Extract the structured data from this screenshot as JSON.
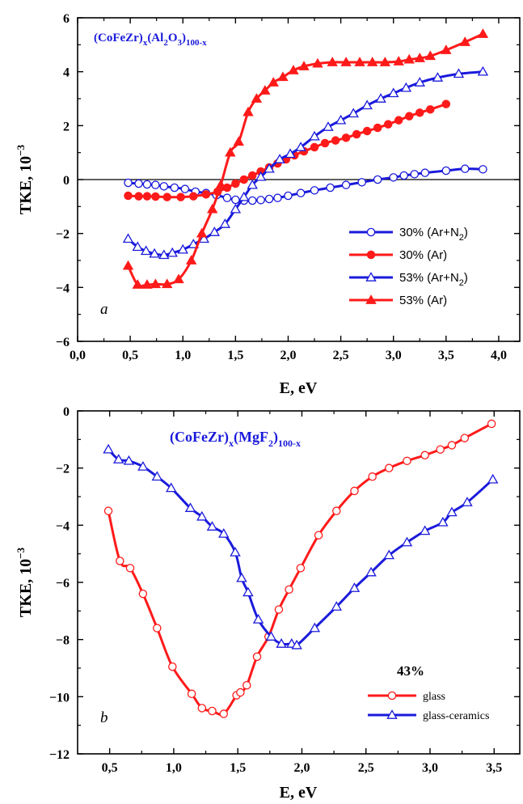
{
  "chart_data": [
    {
      "type": "line",
      "panel_label": "a",
      "formula": {
        "base": "(CoFeZr)",
        "sub1": "x",
        "mid1": "(Al",
        "sub2": "2",
        "mid2": "O",
        "sub3": "3",
        "mid3": ")",
        "sub4": "100-x"
      },
      "xlabel": "E, eV",
      "ylabel": {
        "main": "TKE, 10",
        "exp": "−3"
      },
      "xlim": [
        0.0,
        4.2
      ],
      "ylim": [
        -6,
        6
      ],
      "xticks": [
        0.0,
        0.5,
        1.0,
        1.5,
        2.0,
        2.5,
        3.0,
        3.5,
        4.0
      ],
      "xtick_labels": [
        "0,0",
        "0,5",
        "1,0",
        "1,5",
        "2,0",
        "2,5",
        "3,0",
        "3,5",
        "4,0"
      ],
      "yticks": [
        -6,
        -4,
        -2,
        0,
        2,
        4,
        6
      ],
      "ytick_labels": [
        "−6",
        "−4",
        "−2",
        "0",
        "2",
        "4",
        "6"
      ],
      "zero_line": true,
      "legend_position": "bottom-right",
      "series": [
        {
          "name": "30% (Ar+N",
          "name_sub": "2",
          "name_end": ")",
          "color": "#1a1adc",
          "marker": "circle-open",
          "x": [
            0.48,
            0.58,
            0.66,
            0.74,
            0.82,
            0.92,
            1.02,
            1.12,
            1.22,
            1.32,
            1.42,
            1.5,
            1.58,
            1.66,
            1.74,
            1.82,
            1.9,
            2.0,
            2.12,
            2.25,
            2.4,
            2.55,
            2.7,
            2.85,
            3.0,
            3.1,
            3.2,
            3.3,
            3.5,
            3.68,
            3.85
          ],
          "y": [
            -0.12,
            -0.15,
            -0.18,
            -0.2,
            -0.25,
            -0.3,
            -0.35,
            -0.45,
            -0.5,
            -0.58,
            -0.68,
            -0.75,
            -0.78,
            -0.78,
            -0.76,
            -0.72,
            -0.68,
            -0.6,
            -0.5,
            -0.4,
            -0.3,
            -0.2,
            -0.1,
            0.0,
            0.08,
            0.15,
            0.2,
            0.25,
            0.33,
            0.4,
            0.38
          ]
        },
        {
          "name": "30% (Ar)",
          "name_sub": "",
          "name_end": "",
          "color": "#ff1a1a",
          "marker": "circle-filled",
          "x": [
            0.48,
            0.58,
            0.66,
            0.74,
            0.85,
            0.98,
            1.1,
            1.22,
            1.33,
            1.42,
            1.5,
            1.58,
            1.66,
            1.74,
            1.82,
            1.9,
            1.98,
            2.06,
            2.15,
            2.25,
            2.35,
            2.45,
            2.55,
            2.65,
            2.75,
            2.85,
            2.95,
            3.05,
            3.15,
            3.25,
            3.35,
            3.5
          ],
          "y": [
            -0.6,
            -0.62,
            -0.62,
            -0.63,
            -0.65,
            -0.65,
            -0.62,
            -0.55,
            -0.45,
            -0.3,
            -0.15,
            0.0,
            0.15,
            0.3,
            0.45,
            0.6,
            0.75,
            0.9,
            1.05,
            1.2,
            1.35,
            1.45,
            1.55,
            1.68,
            1.8,
            1.92,
            2.05,
            2.2,
            2.35,
            2.48,
            2.6,
            2.8
          ]
        },
        {
          "name": "53% (Ar+N",
          "name_sub": "2",
          "name_end": ")",
          "color": "#1a1adc",
          "marker": "triangle-open",
          "x": [
            0.48,
            0.57,
            0.65,
            0.73,
            0.82,
            0.9,
            1.0,
            1.1,
            1.2,
            1.3,
            1.4,
            1.5,
            1.58,
            1.66,
            1.74,
            1.82,
            1.92,
            2.02,
            2.12,
            2.25,
            2.38,
            2.5,
            2.62,
            2.75,
            2.88,
            3.0,
            3.12,
            3.25,
            3.42,
            3.62,
            3.85
          ],
          "y": [
            -2.2,
            -2.5,
            -2.65,
            -2.75,
            -2.8,
            -2.72,
            -2.6,
            -2.4,
            -2.2,
            -1.95,
            -1.65,
            -1.1,
            -0.65,
            -0.2,
            0.1,
            0.4,
            0.75,
            0.95,
            1.2,
            1.6,
            1.95,
            2.2,
            2.45,
            2.75,
            3.0,
            3.2,
            3.4,
            3.6,
            3.78,
            3.92,
            4.0
          ]
        },
        {
          "name": "53% (Ar)",
          "name_sub": "",
          "name_end": "",
          "color": "#ff1a1a",
          "marker": "triangle-filled",
          "x": [
            0.48,
            0.57,
            0.66,
            0.74,
            0.85,
            0.96,
            1.08,
            1.18,
            1.28,
            1.36,
            1.45,
            1.53,
            1.62,
            1.7,
            1.78,
            1.86,
            1.95,
            2.05,
            2.15,
            2.28,
            2.42,
            2.55,
            2.68,
            2.8,
            2.92,
            3.05,
            3.15,
            3.25,
            3.35,
            3.5,
            3.68,
            3.85
          ],
          "y": [
            -3.2,
            -3.9,
            -3.9,
            -3.88,
            -3.88,
            -3.7,
            -3.0,
            -2.0,
            -1.1,
            -0.2,
            1.0,
            1.4,
            2.5,
            3.0,
            3.3,
            3.6,
            3.8,
            4.05,
            4.2,
            4.3,
            4.35,
            4.35,
            4.35,
            4.35,
            4.35,
            4.38,
            4.45,
            4.5,
            4.58,
            4.8,
            5.1,
            5.4
          ]
        }
      ]
    },
    {
      "type": "line",
      "panel_label": "b",
      "formula": {
        "base": "(CoFeZr)",
        "sub1": "x",
        "mid1": "(MgF",
        "sub2": "2",
        "mid2": ")",
        "sub3": "100-x"
      },
      "xlabel": "E, eV",
      "ylabel": {
        "main": "TKE, 10",
        "exp": "−3"
      },
      "xlim": [
        0.25,
        3.7
      ],
      "ylim": [
        -12,
        0
      ],
      "xticks": [
        0.5,
        1.0,
        1.5,
        2.0,
        2.5,
        3.0,
        3.5
      ],
      "xtick_labels": [
        "0,5",
        "1,0",
        "1,5",
        "2,0",
        "2,5",
        "3,0",
        "3,5"
      ],
      "yticks": [
        -12,
        -10,
        -8,
        -6,
        -4,
        -2,
        0
      ],
      "ytick_labels": [
        "−12",
        "−10",
        "−8",
        "−6",
        "−4",
        "−2",
        "0"
      ],
      "legend_title": "43%",
      "legend_position": "bottom-right",
      "series": [
        {
          "name": "glass",
          "color": "#ff1a1a",
          "marker": "circle-open",
          "x": [
            0.49,
            0.58,
            0.66,
            0.76,
            0.87,
            0.99,
            1.14,
            1.22,
            1.3,
            1.39,
            1.49,
            1.52,
            1.57,
            1.65,
            1.74,
            1.82,
            1.9,
            1.99,
            2.13,
            2.27,
            2.41,
            2.55,
            2.68,
            2.82,
            2.96,
            3.08,
            3.17,
            3.27,
            3.48
          ],
          "y": [
            -3.5,
            -5.25,
            -5.5,
            -6.4,
            -7.6,
            -8.95,
            -9.9,
            -10.4,
            -10.5,
            -10.6,
            -9.95,
            -9.85,
            -9.6,
            -8.6,
            -7.9,
            -6.95,
            -6.25,
            -5.5,
            -4.35,
            -3.5,
            -2.8,
            -2.3,
            -2.0,
            -1.75,
            -1.55,
            -1.35,
            -1.2,
            -0.95,
            -0.45
          ]
        },
        {
          "name": "glass-ceramics",
          "color": "#1a1adc",
          "marker": "triangle-open",
          "x": [
            0.49,
            0.57,
            0.65,
            0.76,
            0.87,
            0.98,
            1.13,
            1.22,
            1.3,
            1.39,
            1.48,
            1.53,
            1.58,
            1.66,
            1.76,
            1.84,
            1.92,
            1.96,
            2.1,
            2.27,
            2.41,
            2.54,
            2.68,
            2.82,
            2.96,
            3.1,
            3.17,
            3.29,
            3.49
          ],
          "y": [
            -1.35,
            -1.7,
            -1.75,
            -1.95,
            -2.3,
            -2.7,
            -3.4,
            -3.7,
            -4.05,
            -4.3,
            -4.95,
            -5.85,
            -6.35,
            -7.3,
            -7.9,
            -8.15,
            -8.15,
            -8.2,
            -7.6,
            -6.85,
            -6.2,
            -5.65,
            -5.05,
            -4.6,
            -4.2,
            -3.9,
            -3.55,
            -3.2,
            -2.4
          ]
        }
      ]
    }
  ]
}
